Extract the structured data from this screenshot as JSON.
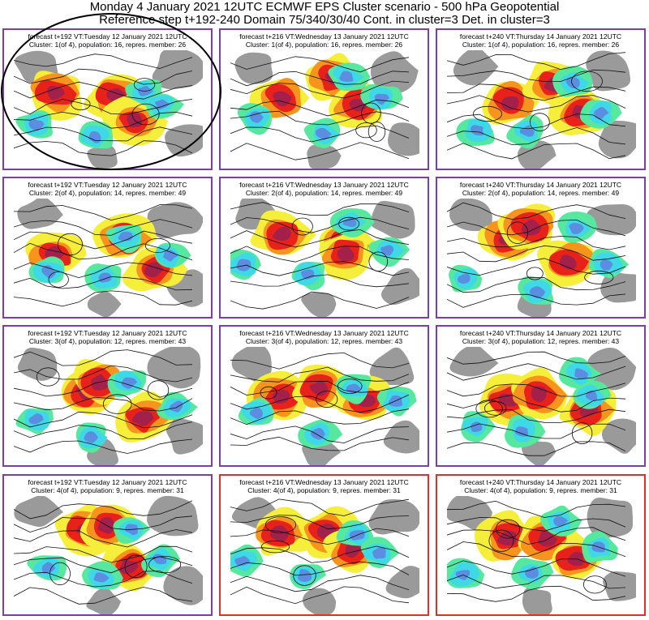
{
  "header": {
    "line1": "Monday 4 January 2021 12UTC ECMWF EPS Cluster scenario - 500 hPa Geopotential",
    "line2": "Reference step t+192-240 Domain 75/340/30/40 Cont. in cluster=3 Det. in cluster=3"
  },
  "colors": {
    "frame_purple": "#7b3fa8",
    "frame_red": "#e0302a",
    "anomaly_red": "#e8221b",
    "anomaly_darkred": "#a3204a",
    "anomaly_orange": "#f7941d",
    "anomaly_yellow": "#f5ee3a",
    "anomaly_green": "#57e8a0",
    "anomaly_cyan": "#3fd8e6",
    "anomaly_blue": "#5b8de0",
    "land_grey": "#9a9a9a"
  },
  "panels": [
    {
      "line1": "forecast t+192 VT:Tuesday 12 January 2021 12UTC",
      "line2": "Cluster: 1(of 4), population: 16, repres. member: 26"
    },
    {
      "line1": "forecast t+216 VT:Wednesday 13 January 2021 12UTC",
      "line2": "Cluster: 1(of 4), population: 16, repres. member: 26"
    },
    {
      "line1": "forecast t+240 VT:Thursday 14 January 2021 12UTC",
      "line2": "Cluster: 1(of 4), population: 16, repres. member: 26"
    },
    {
      "line1": "forecast t+192 VT:Tuesday 12 January 2021 12UTC",
      "line2": "Cluster: 2(of 4), population: 14, repres. member: 49"
    },
    {
      "line1": "forecast t+216 VT:Wednesday 13 January 2021 12UTC",
      "line2": "Cluster: 2(of 4), population: 14, repres. member: 49"
    },
    {
      "line1": "forecast t+240 VT:Thursday 14 January 2021 12UTC",
      "line2": "Cluster: 2(of 4), population: 14, repres. member: 49"
    },
    {
      "line1": "forecast t+192 VT:Tuesday 12 January 2021 12UTC",
      "line2": "Cluster: 3(of 4), population: 12, repres. member: 43"
    },
    {
      "line1": "forecast t+216 VT:Wednesday 13 January 2021 12UTC",
      "line2": "Cluster: 3(of 4), population: 12, repres. member: 43"
    },
    {
      "line1": "forecast t+240 VT:Thursday 14 January 2021 12UTC",
      "line2": "Cluster: 3(of 4), population: 12, repres. member: 43"
    },
    {
      "line1": "forecast t+192 VT:Tuesday 12 January 2021 12UTC",
      "line2": "Cluster: 4(of 4), population: 9, repres. member: 31"
    },
    {
      "line1": "forecast t+216 VT:Wednesday 13 January 2021 12UTC",
      "line2": "Cluster: 4(of 4), population: 9, repres. member: 31"
    },
    {
      "line1": "forecast t+240 VT:Thursday 14 January 2021 12UTC",
      "line2": "Cluster: 4(of 4), population: 9, repres. member: 31"
    }
  ]
}
